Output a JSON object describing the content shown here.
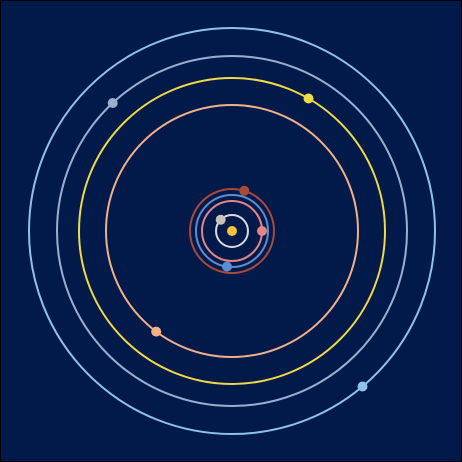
{
  "diagram": {
    "background": "#021a4a",
    "border_color": "#000000",
    "sun": {
      "color": "#f3c33b"
    },
    "bodies": [
      {
        "name": "orbit-1",
        "orbit_color": "#d9d9d9",
        "planet_color": "#c8c4bc",
        "angle_deg": -135
      },
      {
        "name": "orbit-2",
        "orbit_color": "#e38488",
        "planet_color": "#e38488",
        "angle_deg": 0
      },
      {
        "name": "orbit-3",
        "orbit_color": "#5b8ed0",
        "planet_color": "#5b8ed0",
        "angle_deg": 98
      },
      {
        "name": "orbit-4",
        "orbit_color": "#a64b3a",
        "planet_color": "#a64b3a",
        "angle_deg": -73
      },
      {
        "name": "orbit-5",
        "orbit_color": "#f0b188",
        "planet_color": "#f0b188",
        "angle_deg": 127
      },
      {
        "name": "orbit-6",
        "orbit_color": "#eedb45",
        "planet_color": "#eedb45",
        "angle_deg": -60
      },
      {
        "name": "orbit-7",
        "orbit_color": "#9aafd0",
        "planet_color": "#9aafd0",
        "angle_deg": -133
      },
      {
        "name": "orbit-8",
        "orbit_color": "#8fc2e8",
        "planet_color": "#8fc2e8",
        "angle_deg": 50
      }
    ]
  }
}
